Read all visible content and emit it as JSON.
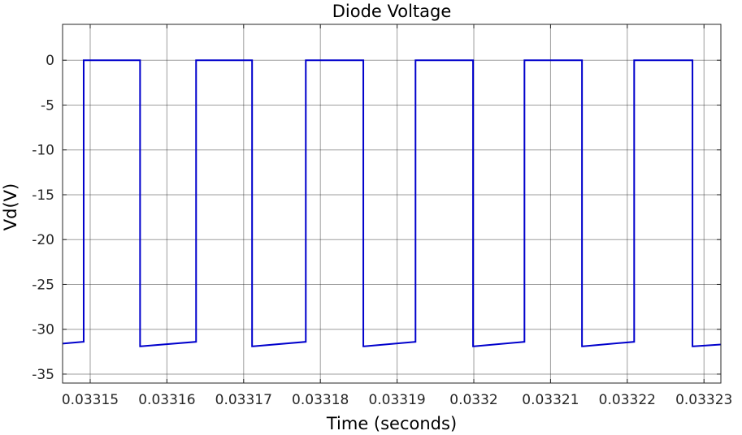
{
  "chart_data": {
    "type": "line",
    "title": "Diode Voltage",
    "xlabel": "Time (seconds)",
    "ylabel": "Vd(V)",
    "xlim": [
      0.0331464,
      0.0332322
    ],
    "ylim": [
      -36,
      4
    ],
    "grid": true,
    "xticks": [
      0.03315,
      0.03316,
      0.03317,
      0.03318,
      0.03319,
      0.0332,
      0.03321,
      0.03322,
      0.03323
    ],
    "xtick_labels": [
      "0.03315",
      "0.03316",
      "0.03317",
      "0.03318",
      "0.03319",
      "0.0332",
      "0.03321",
      "0.03322",
      "0.03323"
    ],
    "yticks": [
      0,
      -5,
      -10,
      -15,
      -20,
      -25,
      -30,
      -35
    ],
    "ytick_labels": [
      "0",
      "-5",
      "-10",
      "-15",
      "-20",
      "-25",
      "-30",
      "-35"
    ],
    "colors": {
      "series": "#0000cc",
      "grid": "#262626",
      "axes": "#262626"
    },
    "series": [
      {
        "x": [
          0.0331464,
          0.0331491,
          0.03314915,
          0.03314915,
          0.0331565,
          0.0331565,
          0.03315655,
          0.0331638,
          0.0331638,
          0.0331639,
          0.0331711,
          0.0331711,
          0.0331712,
          0.0331781,
          0.0331781,
          0.0331782,
          0.0331856,
          0.0331856,
          0.0331857,
          0.0331924,
          0.0331924,
          0.0331925,
          0.0331999,
          0.0331999,
          0.0332,
          0.0332066,
          0.0332066,
          0.0332067,
          0.0332141,
          0.0332141,
          0.0332142,
          0.0332209,
          0.0332209,
          0.033221,
          0.0332285,
          0.0332285,
          0.0332286,
          0.0332322
        ],
        "y": [
          -31.6,
          -31.4,
          -31.4,
          0,
          0,
          -31.9,
          -31.9,
          -31.4,
          0,
          0,
          0,
          -31.9,
          -31.9,
          -31.4,
          0,
          0,
          0,
          -31.9,
          -31.9,
          -31.4,
          0,
          0,
          0,
          -31.9,
          -31.9,
          -31.4,
          0,
          0,
          0,
          -31.9,
          -31.9,
          -31.4,
          0,
          0,
          0,
          -31.9,
          -31.9,
          -31.7
        ]
      }
    ]
  }
}
